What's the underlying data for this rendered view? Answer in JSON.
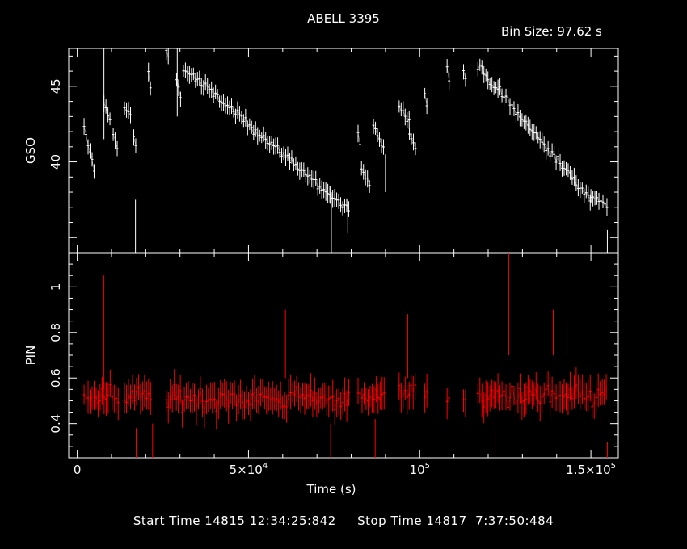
{
  "chart_data": {
    "type": "line",
    "title": "ABELL 3395",
    "bin_size_label": "Bin Size: 97.62 s",
    "footer": "Start Time 14815 12:34:25:842     Stop Time 14817  7:37:50:484",
    "xlabel": "Time (s)",
    "xlim": [
      -2500,
      158000
    ],
    "x_ticks": [
      {
        "value": 0,
        "label": "0",
        "exp": ""
      },
      {
        "value": 50000,
        "label": "5×10",
        "exp": "4"
      },
      {
        "value": 100000,
        "label": "10",
        "exp": "5"
      },
      {
        "value": 150000,
        "label": "1.5×10",
        "exp": "5"
      }
    ],
    "panels": [
      {
        "ylabel": "GSO",
        "ylim": [
          34,
          47.5
        ],
        "y_ticks": [
          {
            "value": 40,
            "label": "40"
          },
          {
            "value": 45,
            "label": "45"
          }
        ],
        "color": "#ffffff",
        "segments": [
          {
            "x0": 2000,
            "x1": 5500,
            "y0": 42.2,
            "y1": 39.0,
            "noise": 0.5,
            "err": 0.5
          },
          {
            "x0": 7800,
            "x1": 9800,
            "y0": 43.8,
            "y1": 42.6,
            "noise": 0.5,
            "err": 0.5
          },
          {
            "x0": 10500,
            "x1": 12000,
            "y0": 42.0,
            "y1": 40.6,
            "noise": 0.4,
            "err": 0.5
          },
          {
            "x0": 13800,
            "x1": 15800,
            "y0": 43.5,
            "y1": 43.0,
            "noise": 0.4,
            "err": 0.5
          },
          {
            "x0": 16500,
            "x1": 17500,
            "y0": 41.8,
            "y1": 40.5,
            "noise": 0.4,
            "err": 0.5
          },
          {
            "x0": 20800,
            "x1": 21800,
            "y0": 46.0,
            "y1": 44.2,
            "noise": 0.4,
            "err": 0.5
          },
          {
            "x0": 26000,
            "x1": 27000,
            "y0": 47.3,
            "y1": 46.8,
            "noise": 0.3,
            "err": 0.5
          },
          {
            "x0": 29000,
            "x1": 30200,
            "y0": 45.5,
            "y1": 44.2,
            "noise": 0.5,
            "err": 0.5
          },
          {
            "x0": 31000,
            "x1": 74000,
            "y0": 46.2,
            "y1": 37.8,
            "noise": 0.55,
            "err": 0.5
          },
          {
            "x0": 74000,
            "x1": 79500,
            "y0": 37.7,
            "y1": 36.8,
            "noise": 0.5,
            "err": 0.5
          },
          {
            "x0": 82000,
            "x1": 83000,
            "y0": 41.8,
            "y1": 40.8,
            "noise": 0.3,
            "err": 0.5
          },
          {
            "x0": 83000,
            "x1": 85500,
            "y0": 39.5,
            "y1": 38.3,
            "noise": 0.4,
            "err": 0.5
          },
          {
            "x0": 86500,
            "x1": 90000,
            "y0": 42.6,
            "y1": 40.5,
            "noise": 0.5,
            "err": 0.5
          },
          {
            "x0": 94000,
            "x1": 97000,
            "y0": 43.8,
            "y1": 42.6,
            "noise": 0.5,
            "err": 0.5
          },
          {
            "x0": 97000,
            "x1": 99000,
            "y0": 42.0,
            "y1": 40.8,
            "noise": 0.4,
            "err": 0.5
          },
          {
            "x0": 101500,
            "x1": 102500,
            "y0": 44.5,
            "y1": 43.2,
            "noise": 0.4,
            "err": 0.5
          },
          {
            "x0": 108000,
            "x1": 109000,
            "y0": 46.2,
            "y1": 45.0,
            "noise": 0.3,
            "err": 0.5
          },
          {
            "x0": 112800,
            "x1": 113800,
            "y0": 46.0,
            "y1": 45.2,
            "noise": 0.3,
            "err": 0.5
          },
          {
            "x0": 117000,
            "x1": 150000,
            "y0": 46.3,
            "y1": 37.5,
            "noise": 0.55,
            "err": 0.5
          },
          {
            "x0": 150000,
            "x1": 155000,
            "y0": 37.8,
            "y1": 37.0,
            "noise": 0.5,
            "err": 0.5
          }
        ],
        "spikes": [
          {
            "x": 7800,
            "y0": 41.5,
            "y1": 47.5
          },
          {
            "x": 17000,
            "y0": 34.0,
            "y1": 37.5
          },
          {
            "x": 29200,
            "y0": 43.0,
            "y1": 47.5
          },
          {
            "x": 74200,
            "y0": 34.0,
            "y1": 38.0
          },
          {
            "x": 79000,
            "y0": 35.3,
            "y1": 37.5
          },
          {
            "x": 90000,
            "y0": 38.0,
            "y1": 40.5
          },
          {
            "x": 154800,
            "y0": 34.0,
            "y1": 35.5
          }
        ]
      },
      {
        "ylabel": "PIN",
        "ylim": [
          0.25,
          1.15
        ],
        "y_ticks": [
          {
            "value": 0.4,
            "label": "0.4"
          },
          {
            "value": 0.6,
            "label": "0.6"
          },
          {
            "value": 0.8,
            "label": "0.8"
          },
          {
            "value": 1.0,
            "label": "1"
          }
        ],
        "color": "#ff0000",
        "segments": [
          {
            "x0": 2000,
            "x1": 12000,
            "y0": 0.52,
            "y1": 0.52,
            "noise": 0.07,
            "err": 0.06
          },
          {
            "x0": 13800,
            "x1": 21800,
            "y0": 0.52,
            "y1": 0.52,
            "noise": 0.07,
            "err": 0.06
          },
          {
            "x0": 26000,
            "x1": 79500,
            "y0": 0.51,
            "y1": 0.51,
            "noise": 0.08,
            "err": 0.06
          },
          {
            "x0": 82000,
            "x1": 90000,
            "y0": 0.52,
            "y1": 0.52,
            "noise": 0.06,
            "err": 0.06
          },
          {
            "x0": 94000,
            "x1": 99000,
            "y0": 0.54,
            "y1": 0.54,
            "noise": 0.06,
            "err": 0.06
          },
          {
            "x0": 101500,
            "x1": 102500,
            "y0": 0.52,
            "y1": 0.52,
            "noise": 0.04,
            "err": 0.06
          },
          {
            "x0": 108000,
            "x1": 109000,
            "y0": 0.52,
            "y1": 0.52,
            "noise": 0.04,
            "err": 0.06
          },
          {
            "x0": 112800,
            "x1": 113800,
            "y0": 0.5,
            "y1": 0.5,
            "noise": 0.04,
            "err": 0.06
          },
          {
            "x0": 117000,
            "x1": 155000,
            "y0": 0.52,
            "y1": 0.52,
            "noise": 0.08,
            "err": 0.06
          }
        ],
        "spikes": [
          {
            "x": 7800,
            "y0": 0.55,
            "y1": 1.05
          },
          {
            "x": 17200,
            "y0": 0.25,
            "y1": 0.38
          },
          {
            "x": 22000,
            "y0": 0.25,
            "y1": 0.4
          },
          {
            "x": 60800,
            "y0": 0.6,
            "y1": 0.9
          },
          {
            "x": 74000,
            "y0": 0.25,
            "y1": 0.4
          },
          {
            "x": 87000,
            "y0": 0.25,
            "y1": 0.42
          },
          {
            "x": 96500,
            "y0": 0.6,
            "y1": 0.88
          },
          {
            "x": 122000,
            "y0": 0.25,
            "y1": 0.4
          },
          {
            "x": 126000,
            "y0": 0.7,
            "y1": 1.15
          },
          {
            "x": 139000,
            "y0": 0.7,
            "y1": 0.9
          },
          {
            "x": 143000,
            "y0": 0.7,
            "y1": 0.85
          },
          {
            "x": 154800,
            "y0": 0.25,
            "y1": 0.32
          }
        ]
      }
    ]
  }
}
